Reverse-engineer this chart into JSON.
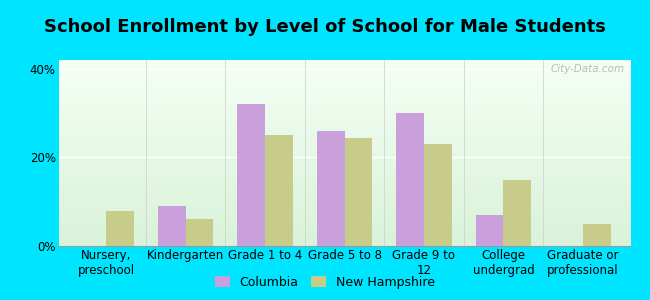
{
  "title": "School Enrollment by Level of School for Male Students",
  "categories": [
    "Nursery,\npreschool",
    "Kindergarten",
    "Grade 1 to 4",
    "Grade 5 to 8",
    "Grade 9 to\n12",
    "College\nundergrad",
    "Graduate or\nprofessional"
  ],
  "columbia": [
    0,
    9,
    32,
    26,
    30,
    7,
    0
  ],
  "new_hampshire": [
    8,
    6,
    25,
    24.5,
    23,
    15,
    5
  ],
  "columbia_color": "#c9a0dc",
  "nh_color": "#c8cc8a",
  "bg_outer": "#00e5ff",
  "ylim": [
    0,
    42
  ],
  "yticks": [
    0,
    20,
    40
  ],
  "ytick_labels": [
    "0%",
    "20%",
    "40%"
  ],
  "bar_width": 0.35,
  "legend_columbia": "Columbia",
  "legend_nh": "New Hampshire",
  "title_fontsize": 13,
  "tick_fontsize": 8.5
}
